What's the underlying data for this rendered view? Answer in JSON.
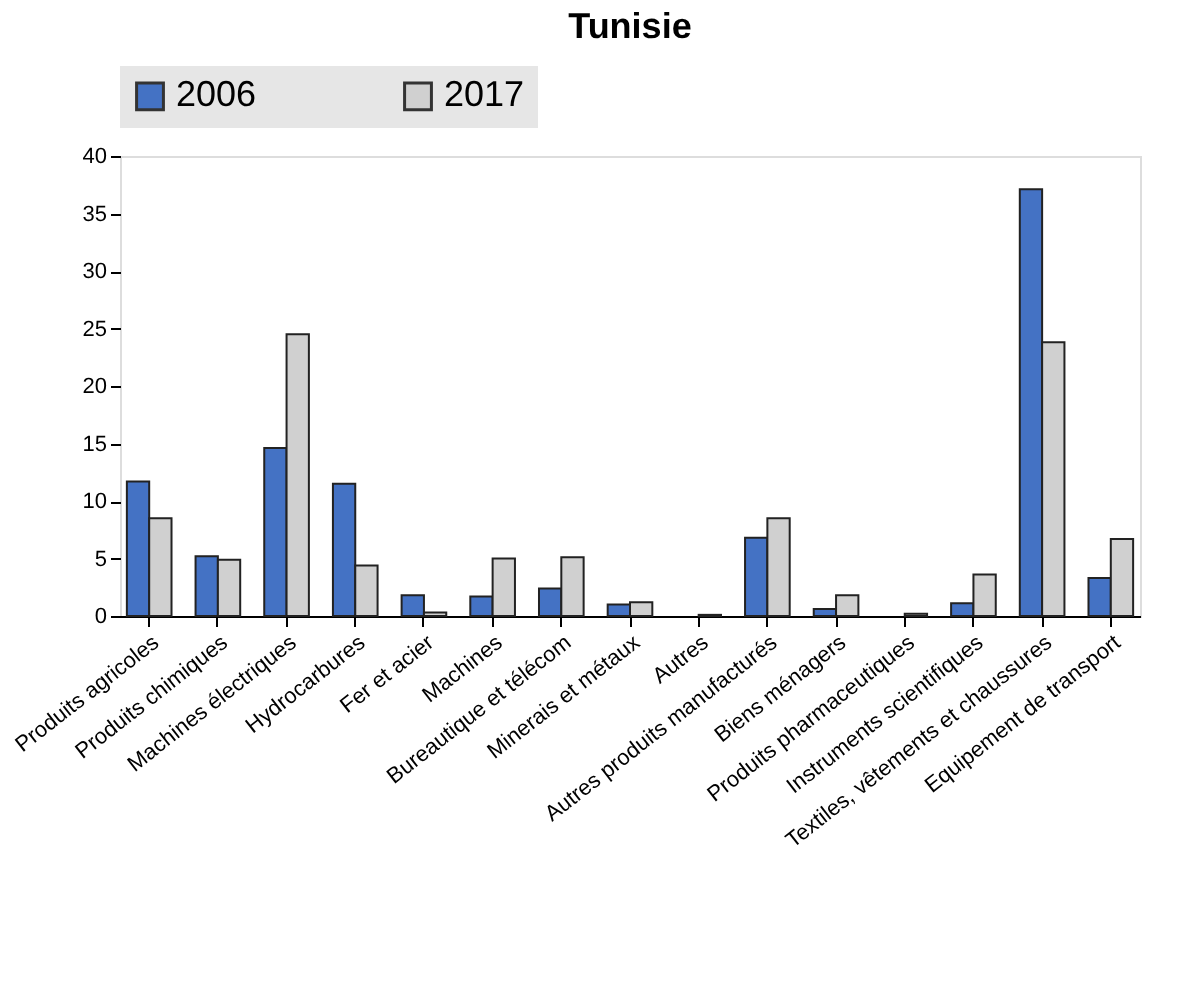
{
  "chart_data": {
    "type": "bar",
    "title": "Tunisie",
    "categories": [
      "Produits agricoles",
      "Produits chimiques",
      "Machines électriques",
      "Hydrocarbures",
      "Fer et acier",
      "Machines",
      "Bureautique et télécom",
      "Minerais et métaux",
      "Autres",
      "Autres produits manufacturés",
      "Biens ménagers",
      "Produits pharmaceutiques",
      "Instruments scientifiques",
      "Textiles, vêtements et chaussures",
      "Equipement de transport"
    ],
    "series": [
      {
        "name": "2006",
        "color": "#4472c4",
        "values": [
          11.7,
          5.2,
          14.6,
          11.5,
          1.8,
          1.7,
          2.4,
          1.0,
          null,
          6.8,
          0.6,
          null,
          1.1,
          37.1,
          3.3
        ]
      },
      {
        "name": "2017",
        "color": "#d0d0d0",
        "values": [
          8.5,
          4.9,
          24.5,
          4.4,
          0.3,
          5.0,
          5.1,
          1.2,
          0.1,
          8.5,
          1.8,
          0.2,
          3.6,
          23.8,
          6.7
        ]
      }
    ],
    "ylim": [
      0,
      40
    ],
    "yticks": [
      0,
      5,
      10,
      15,
      20,
      25,
      30,
      35,
      40
    ],
    "grid": false,
    "legend": "top"
  }
}
